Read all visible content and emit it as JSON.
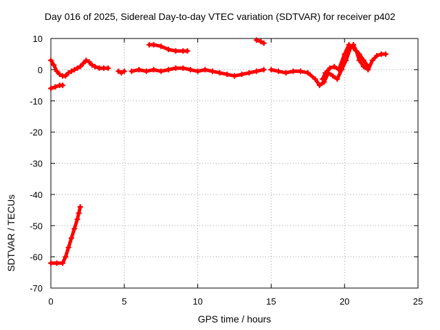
{
  "chart_data": {
    "type": "scatter",
    "title": "Day 016 of 2025, Sidereal Day-to-day VTEC variation (SDTVAR) for receiver p402",
    "xlabel": "GPS time / hours",
    "ylabel": "SDTVAR / TECUs",
    "xlim": [
      0,
      25
    ],
    "ylim": [
      -70,
      10
    ],
    "xticks": [
      0,
      5,
      10,
      15,
      20,
      25
    ],
    "yticks": [
      -70,
      -60,
      -50,
      -40,
      -30,
      -20,
      -10,
      0,
      10
    ],
    "grid": true,
    "marker_color": "#ff0000",
    "series": [
      {
        "name": "seg-main-1",
        "points": [
          [
            0.0,
            3
          ],
          [
            0.2,
            1.5
          ],
          [
            0.4,
            -0.5
          ],
          [
            0.6,
            -1.5
          ],
          [
            0.8,
            -2
          ],
          [
            1.0,
            -2
          ],
          [
            1.2,
            -1
          ],
          [
            1.4,
            -0.5
          ],
          [
            1.6,
            0
          ],
          [
            1.8,
            0.5
          ],
          [
            2.0,
            1
          ],
          [
            2.2,
            2
          ],
          [
            2.4,
            3
          ],
          [
            2.6,
            2.5
          ],
          [
            2.8,
            1.5
          ],
          [
            3.0,
            1
          ],
          [
            3.3,
            0.5
          ],
          [
            3.6,
            0.5
          ],
          [
            3.9,
            0.5
          ]
        ]
      },
      {
        "name": "seg-main-2",
        "points": [
          [
            4.6,
            -0.5
          ],
          [
            4.8,
            -1
          ],
          [
            5.0,
            -0.5
          ]
        ]
      },
      {
        "name": "seg-main-3",
        "points": [
          [
            5.5,
            -0.5
          ],
          [
            6.0,
            0
          ],
          [
            6.5,
            -0.5
          ],
          [
            7.0,
            0
          ],
          [
            7.5,
            -0.5
          ],
          [
            8.0,
            0
          ],
          [
            8.5,
            0.5
          ],
          [
            9.0,
            0.5
          ],
          [
            9.5,
            0
          ],
          [
            10.0,
            -0.5
          ],
          [
            10.5,
            0
          ],
          [
            11.0,
            -0.5
          ],
          [
            11.5,
            -1
          ],
          [
            12.0,
            -1.5
          ],
          [
            12.5,
            -2
          ],
          [
            13.0,
            -1.5
          ],
          [
            13.5,
            -1
          ],
          [
            14.0,
            -0.5
          ],
          [
            14.5,
            0
          ]
        ]
      },
      {
        "name": "seg-main-4",
        "points": [
          [
            15.0,
            0
          ],
          [
            15.5,
            -0.5
          ],
          [
            16.0,
            -1
          ],
          [
            16.5,
            -0.5
          ],
          [
            17.0,
            -0.5
          ],
          [
            17.5,
            -1
          ],
          [
            18.0,
            -3
          ],
          [
            18.3,
            -5
          ],
          [
            18.6,
            -4
          ],
          [
            18.9,
            -1
          ],
          [
            19.2,
            -2
          ],
          [
            19.5,
            -3
          ],
          [
            19.8,
            0
          ],
          [
            20.1,
            3
          ],
          [
            20.4,
            7
          ],
          [
            20.6,
            8
          ],
          [
            20.8,
            6
          ],
          [
            21.0,
            3
          ],
          [
            21.3,
            1
          ],
          [
            21.6,
            0
          ],
          [
            21.9,
            3
          ],
          [
            22.2,
            4.5
          ],
          [
            22.5,
            5
          ],
          [
            22.8,
            5
          ]
        ]
      },
      {
        "name": "seg-main-5",
        "points": [
          [
            18.5,
            -3
          ],
          [
            18.7,
            -1
          ],
          [
            19.0,
            0.5
          ],
          [
            19.3,
            1
          ],
          [
            19.6,
            0
          ],
          [
            20.0,
            5
          ],
          [
            20.3,
            8
          ],
          [
            20.6,
            7
          ],
          [
            21.0,
            5
          ],
          [
            21.3,
            3
          ],
          [
            21.6,
            1
          ]
        ]
      },
      {
        "name": "seg-early-low",
        "points": [
          [
            0.0,
            -6
          ],
          [
            0.3,
            -5.5
          ],
          [
            0.6,
            -5
          ],
          [
            0.8,
            -5
          ]
        ]
      },
      {
        "name": "seg-arc-upper",
        "points": [
          [
            6.7,
            8
          ],
          [
            7.0,
            8
          ],
          [
            7.5,
            7.5
          ],
          [
            8.0,
            6.5
          ],
          [
            8.5,
            6
          ],
          [
            9.0,
            6
          ],
          [
            9.3,
            6
          ]
        ]
      },
      {
        "name": "seg-high-short",
        "points": [
          [
            14.0,
            9.5
          ],
          [
            14.3,
            9
          ],
          [
            14.5,
            8.5
          ]
        ]
      },
      {
        "name": "seg-deep-low",
        "points": [
          [
            0.0,
            -62
          ],
          [
            0.4,
            -62
          ],
          [
            0.8,
            -62
          ],
          [
            1.0,
            -60
          ],
          [
            1.2,
            -57
          ],
          [
            1.4,
            -54
          ],
          [
            1.6,
            -51
          ],
          [
            1.8,
            -48
          ],
          [
            1.9,
            -46
          ],
          [
            2.0,
            -44
          ]
        ]
      }
    ]
  }
}
